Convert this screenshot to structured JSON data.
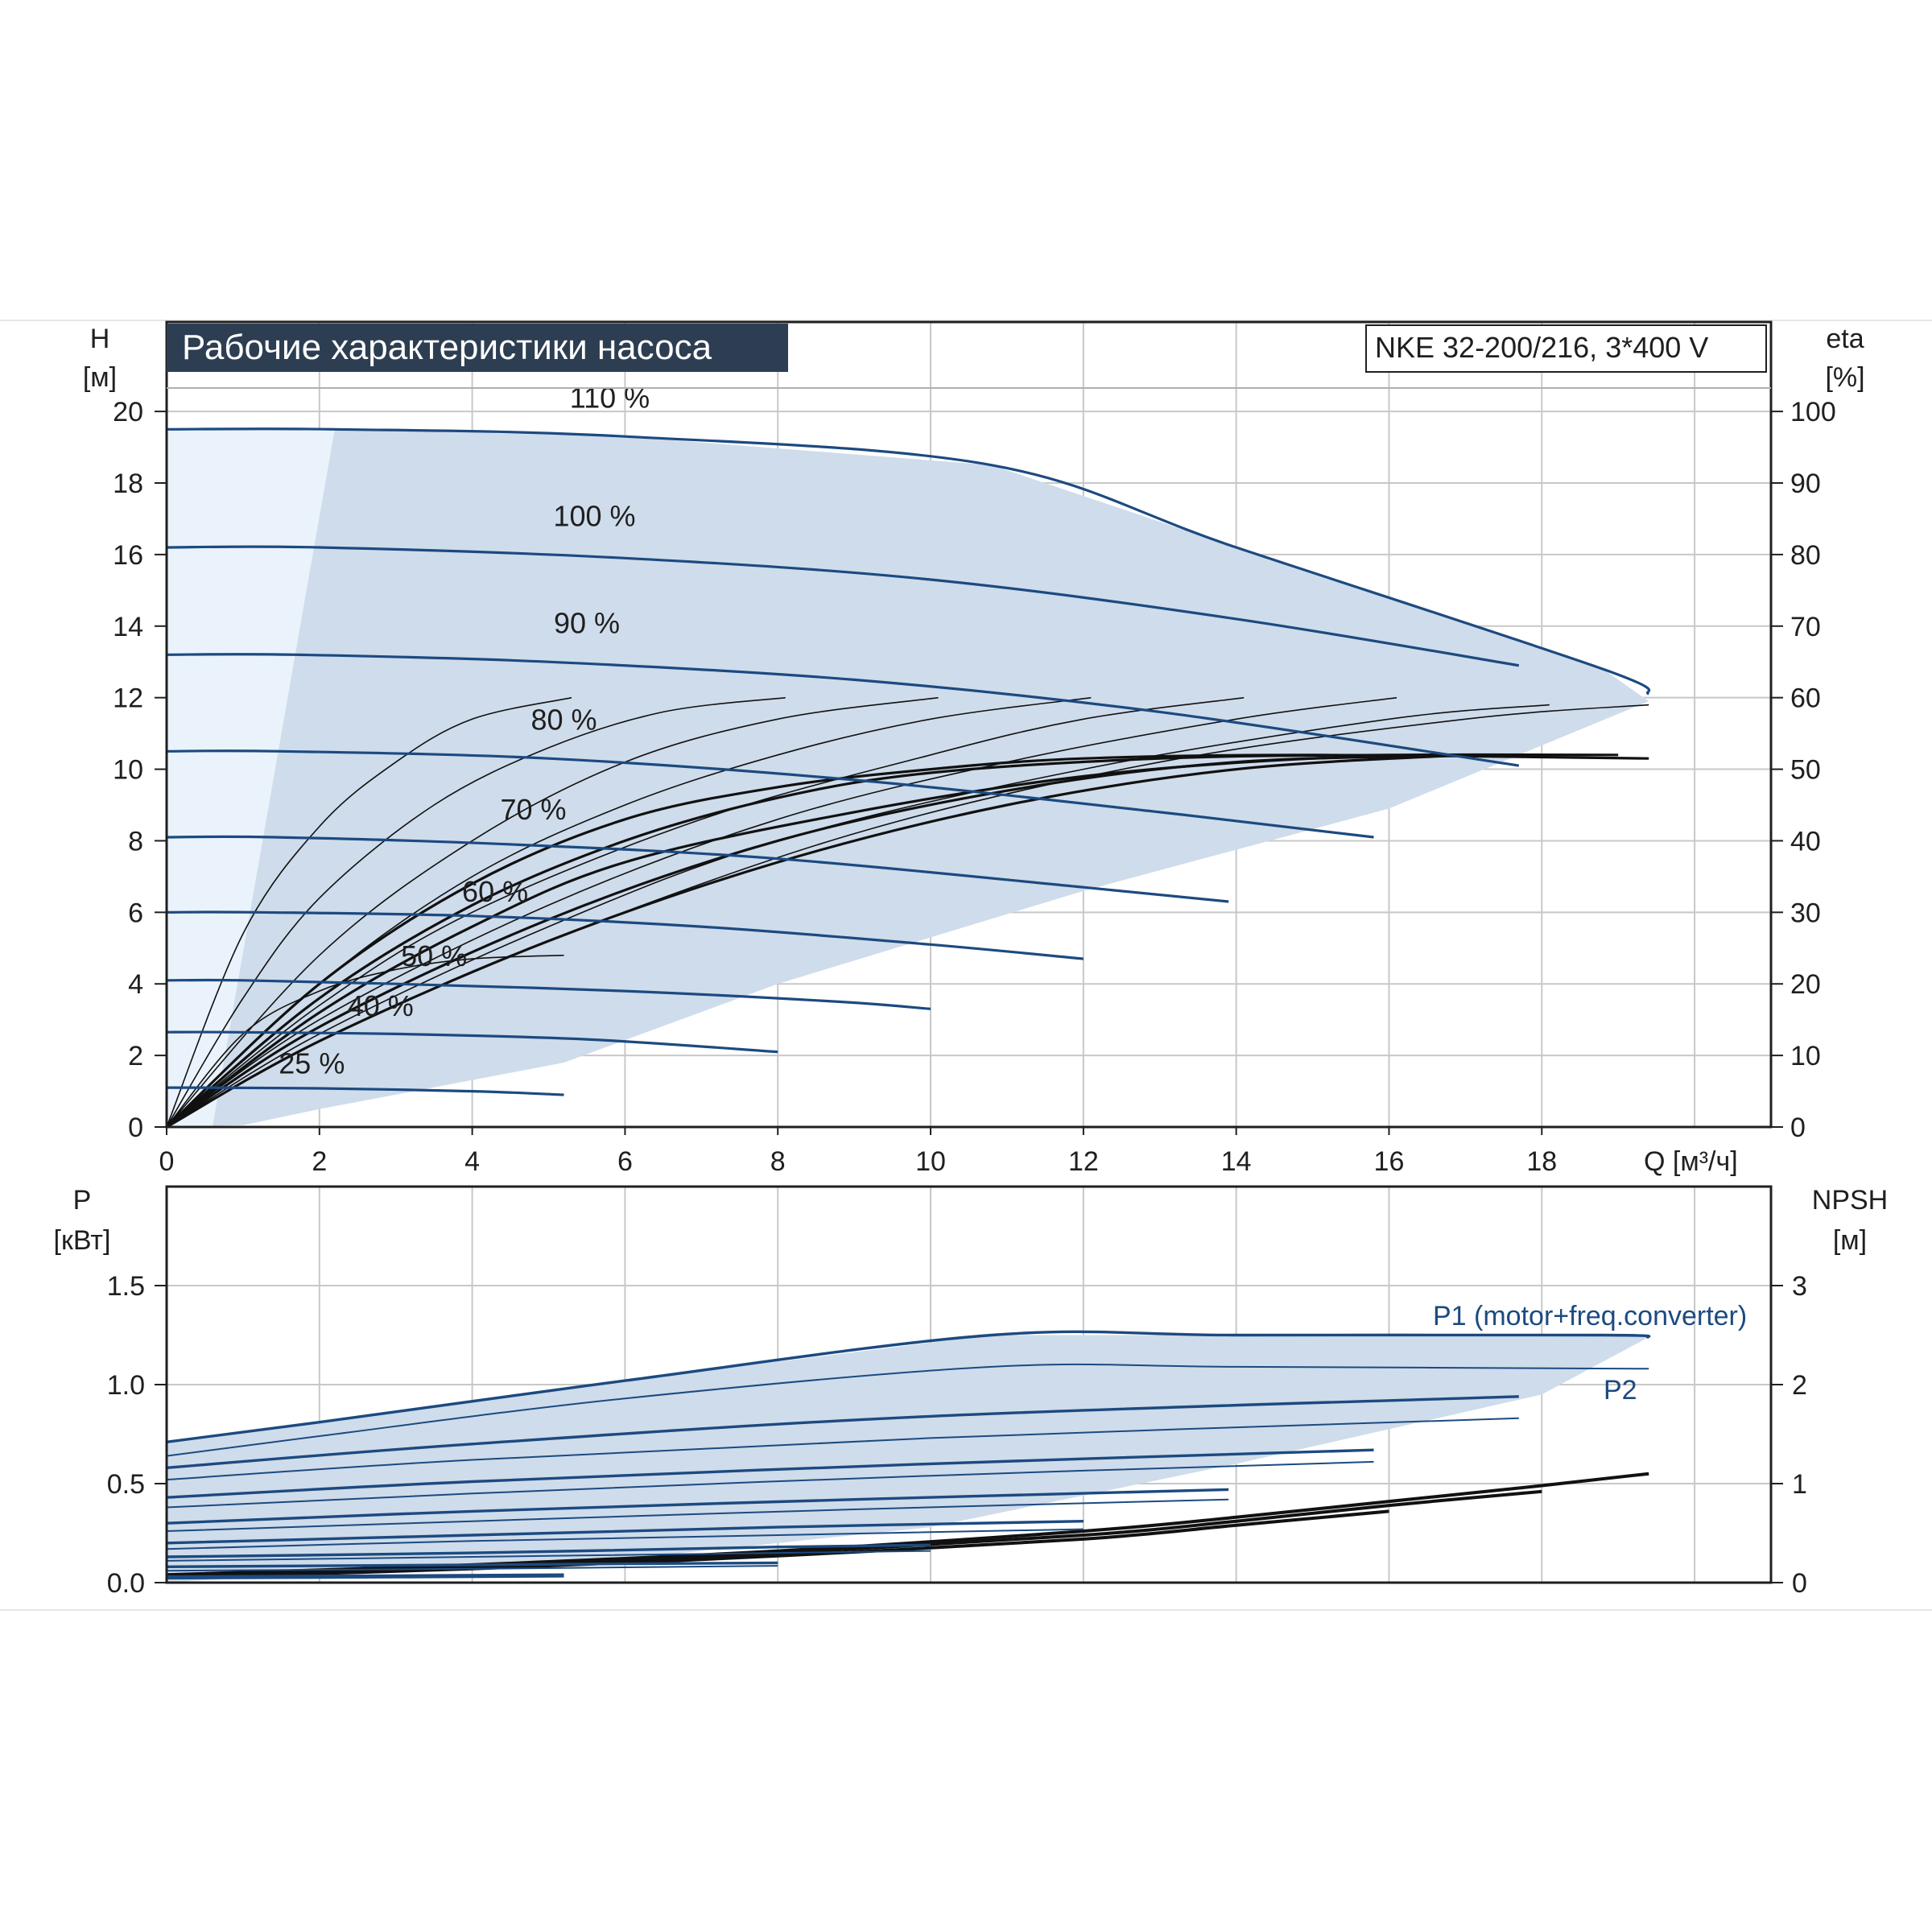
{
  "colors": {
    "head_curve": "#1c4a80",
    "eff_curve": "#111111",
    "area_fill": "#cfdceb",
    "area_fill_light": "#eaf3fb",
    "title_bg": "#2d3e52",
    "grid": "#c8c8c8",
    "axis": "#1f1f1f"
  },
  "chart_data": [
    {
      "type": "line",
      "title": "Рабочие характеристики насоса",
      "model": "NKE 32-200/216, 3*400 V",
      "xlabel": "Q [м³/ч]",
      "ylabel_name": "H",
      "ylabel_unit": "[м]",
      "y2label_name": "eta",
      "y2label_unit": "[%]",
      "xlim": [
        0,
        21
      ],
      "ylim": [
        0,
        22.5
      ],
      "y2lim": [
        0,
        112.5
      ],
      "xticks": [
        "0",
        "2",
        "4",
        "6",
        "8",
        "10",
        "12",
        "14",
        "16",
        "18"
      ],
      "yticks": [
        "0",
        "2",
        "4",
        "6",
        "8",
        "10",
        "12",
        "14",
        "16",
        "18",
        "20"
      ],
      "y2ticks": [
        "0",
        "10",
        "20",
        "30",
        "40",
        "50",
        "60",
        "70",
        "80",
        "90",
        "100"
      ],
      "grid": true,
      "series": [
        {
          "name": "110 %",
          "label_at": [
            5.8,
            20.1
          ],
          "x": [
            0,
            2.2,
            6,
            10.8,
            14,
            18.8,
            19.4
          ],
          "y": [
            19.5,
            19.5,
            19.3,
            18.5,
            16.2,
            12.8,
            12.1
          ]
        },
        {
          "name": "100 %",
          "label_at": [
            5.6,
            16.8
          ],
          "x": [
            0,
            2,
            6,
            10,
            14,
            17.7
          ],
          "y": [
            16.2,
            16.2,
            15.9,
            15.3,
            14.2,
            12.9
          ]
        },
        {
          "name": "90 %",
          "label_at": [
            5.5,
            13.8
          ],
          "x": [
            0,
            1.7,
            5,
            9,
            13,
            17.7
          ],
          "y": [
            13.2,
            13.2,
            13.0,
            12.5,
            11.6,
            10.1
          ]
        },
        {
          "name": "80 %",
          "label_at": [
            5.2,
            11.1
          ],
          "x": [
            0,
            1.5,
            5,
            9,
            13,
            15.8
          ],
          "y": [
            10.5,
            10.5,
            10.3,
            9.7,
            8.8,
            8.1
          ]
        },
        {
          "name": "70 %",
          "label_at": [
            4.8,
            8.6
          ],
          "x": [
            0,
            1.4,
            4.5,
            8,
            12,
            13.9
          ],
          "y": [
            8.1,
            8.1,
            7.9,
            7.5,
            6.7,
            6.3
          ]
        },
        {
          "name": "60 %",
          "label_at": [
            4.3,
            6.3
          ],
          "x": [
            0,
            1.2,
            4,
            7,
            10,
            12
          ],
          "y": [
            6.0,
            6.0,
            5.9,
            5.6,
            5.1,
            4.7
          ]
        },
        {
          "name": "50 %",
          "label_at": [
            3.5,
            4.5
          ],
          "x": [
            0,
            1,
            3,
            6,
            8.8,
            10
          ],
          "y": [
            4.1,
            4.1,
            4.0,
            3.8,
            3.5,
            3.3
          ]
        },
        {
          "name": "40 %",
          "label_at": [
            2.8,
            3.1
          ],
          "x": [
            0,
            0.8,
            3,
            5.5,
            8
          ],
          "y": [
            2.65,
            2.65,
            2.6,
            2.45,
            2.1
          ]
        },
        {
          "name": "25 %",
          "label_at": [
            1.9,
            1.5
          ],
          "x": [
            0,
            0.6,
            2,
            4,
            5.2
          ],
          "y": [
            1.1,
            1.1,
            1.08,
            1.0,
            0.9
          ]
        }
      ],
      "efficiency_series": [
        {
          "x": [
            0,
            1,
            2,
            3,
            4,
            5.2
          ],
          "y": [
            0,
            13,
            19,
            22,
            23.5,
            24
          ]
        },
        {
          "x": [
            0,
            1,
            2,
            3,
            4,
            5.3
          ],
          "y": [
            0,
            27,
            42,
            51,
            57,
            60
          ]
        },
        {
          "x": [
            0,
            1,
            2,
            3.5,
            5,
            6.5,
            8.1
          ],
          "y": [
            0,
            18,
            32,
            45,
            53,
            58,
            60
          ]
        },
        {
          "x": [
            0,
            2,
            4,
            6,
            8,
            10.1
          ],
          "y": [
            0,
            24,
            40,
            51,
            57,
            60
          ]
        },
        {
          "x": [
            0,
            2,
            4,
            6,
            8,
            10,
            12.1
          ],
          "y": [
            0,
            20,
            35,
            45,
            52,
            57,
            60
          ]
        },
        {
          "x": [
            0,
            2,
            4,
            7,
            10,
            12,
            14.1
          ],
          "y": [
            0,
            17,
            30,
            43,
            52,
            57,
            60
          ]
        },
        {
          "x": [
            0,
            2,
            5,
            8,
            11,
            14,
            16.1
          ],
          "y": [
            0,
            15,
            31,
            43,
            51,
            57,
            60
          ]
        },
        {
          "x": [
            0,
            2,
            5,
            8,
            12,
            16,
            18.1
          ],
          "y": [
            0,
            13,
            28,
            40,
            50,
            57,
            59
          ]
        },
        {
          "x": [
            0,
            2,
            5,
            9,
            13,
            17,
            19.4
          ],
          "y": [
            0,
            12,
            26,
            41,
            51,
            57,
            59
          ]
        },
        {
          "x": [
            0,
            2,
            4,
            6,
            8,
            10,
            12,
            15,
            19.4
          ],
          "y": [
            0,
            20,
            34,
            43,
            47.5,
            50,
            51.5,
            52,
            51.5
          ]
        },
        {
          "x": [
            0,
            2,
            4,
            6,
            8,
            10,
            13,
            16,
            19
          ],
          "y": [
            0,
            18,
            31,
            40,
            46,
            49.5,
            51.5,
            52,
            52
          ]
        },
        {
          "x": [
            0,
            2,
            4,
            6,
            9,
            12,
            15,
            18
          ],
          "y": [
            0,
            16,
            28,
            37,
            44,
            49,
            51.5,
            52
          ]
        },
        {
          "x": [
            0,
            2,
            5,
            8,
            11,
            14,
            17.5
          ],
          "y": [
            0,
            14,
            29,
            40,
            47,
            51,
            52
          ]
        },
        {
          "x": [
            0,
            2,
            5,
            8,
            11,
            14,
            17
          ],
          "y": [
            0,
            12,
            26,
            37,
            45,
            50,
            52
          ]
        }
      ],
      "operating_area": {
        "x": [
          0,
          2.2,
          6,
          10.8,
          14,
          18.8,
          19.4,
          16,
          12,
          8,
          5.2,
          2,
          1,
          0
        ],
        "y": [
          19.5,
          19.5,
          19.3,
          18.5,
          16.2,
          12.8,
          11.9,
          8.9,
          6.6,
          4.0,
          1.8,
          0.5,
          0.05,
          0
        ]
      },
      "light_area": {
        "x": [
          0,
          2.2,
          0.6,
          0
        ],
        "y": [
          19.5,
          19.5,
          0,
          0
        ]
      }
    },
    {
      "type": "line",
      "xlim": [
        0,
        21
      ],
      "ylim": [
        0,
        2.0
      ],
      "y2lim": [
        0,
        4.0
      ],
      "ylabel_name": "P",
      "ylabel_unit": "[кВт]",
      "y2label_name": "NPSH",
      "y2label_unit": "[м]",
      "yticks": [
        "0.0",
        "0.5",
        "1.0",
        "1.5"
      ],
      "y2ticks": [
        "0",
        "1",
        "2",
        "3"
      ],
      "grid": true,
      "legend_labels": [
        "P1 (motor+freq.converter)",
        "P2"
      ],
      "power_series": [
        {
          "x": [
            0,
            2,
            6,
            10.8,
            14,
            18.8,
            19.4
          ],
          "y": [
            0.71,
            0.81,
            1.02,
            1.25,
            1.25,
            1.25,
            1.24
          ]
        },
        {
          "x": [
            0,
            2,
            6,
            10.8,
            14,
            19.4
          ],
          "y": [
            0.64,
            0.74,
            0.93,
            1.09,
            1.09,
            1.08
          ]
        },
        {
          "x": [
            0,
            4,
            10,
            17.7
          ],
          "y": [
            0.58,
            0.7,
            0.84,
            0.94
          ]
        },
        {
          "x": [
            0,
            4,
            10,
            17.7
          ],
          "y": [
            0.52,
            0.62,
            0.73,
            0.83
          ]
        },
        {
          "x": [
            0,
            4,
            10,
            15.8
          ],
          "y": [
            0.43,
            0.51,
            0.6,
            0.67
          ]
        },
        {
          "x": [
            0,
            4,
            10,
            15.8
          ],
          "y": [
            0.38,
            0.45,
            0.54,
            0.61
          ]
        },
        {
          "x": [
            0,
            4,
            9,
            13.9
          ],
          "y": [
            0.3,
            0.36,
            0.42,
            0.47
          ]
        },
        {
          "x": [
            0,
            4,
            9,
            13.9
          ],
          "y": [
            0.26,
            0.31,
            0.37,
            0.42
          ]
        },
        {
          "x": [
            0,
            4,
            8,
            12
          ],
          "y": [
            0.2,
            0.24,
            0.28,
            0.31
          ]
        },
        {
          "x": [
            0,
            4,
            8,
            12
          ],
          "y": [
            0.17,
            0.21,
            0.24,
            0.27
          ]
        },
        {
          "x": [
            0,
            4,
            8,
            10
          ],
          "y": [
            0.13,
            0.15,
            0.18,
            0.19
          ]
        },
        {
          "x": [
            0,
            4,
            8,
            10
          ],
          "y": [
            0.11,
            0.13,
            0.15,
            0.16
          ]
        },
        {
          "x": [
            0,
            4,
            8
          ],
          "y": [
            0.08,
            0.09,
            0.1
          ]
        },
        {
          "x": [
            0,
            4,
            8
          ],
          "y": [
            0.06,
            0.07,
            0.085
          ]
        },
        {
          "x": [
            0,
            3,
            5.2
          ],
          "y": [
            0.03,
            0.035,
            0.04
          ]
        },
        {
          "x": [
            0,
            3,
            5.2
          ],
          "y": [
            0.02,
            0.025,
            0.03
          ]
        }
      ],
      "npsh_series": [
        {
          "x": [
            0,
            4,
            8,
            12,
            14,
            16,
            18,
            19.4
          ],
          "y": [
            0.08,
            0.18,
            0.32,
            0.52,
            0.66,
            0.82,
            0.98,
            1.1
          ]
        },
        {
          "x": [
            0,
            4,
            8,
            12,
            14,
            16,
            18
          ],
          "y": [
            0.06,
            0.16,
            0.3,
            0.48,
            0.62,
            0.78,
            0.92
          ]
        },
        {
          "x": [
            0,
            4,
            8,
            12,
            14,
            16
          ],
          "y": [
            0.05,
            0.14,
            0.27,
            0.44,
            0.58,
            0.72
          ]
        }
      ],
      "power_area": {
        "x": [
          0,
          2,
          6,
          10.8,
          14,
          18.8,
          19.4,
          18,
          14,
          10,
          6,
          2,
          0
        ],
        "y": [
          0.71,
          0.81,
          1.02,
          1.25,
          1.25,
          1.25,
          1.24,
          0.95,
          0.6,
          0.28,
          0.12,
          0.05,
          0
        ]
      }
    }
  ]
}
